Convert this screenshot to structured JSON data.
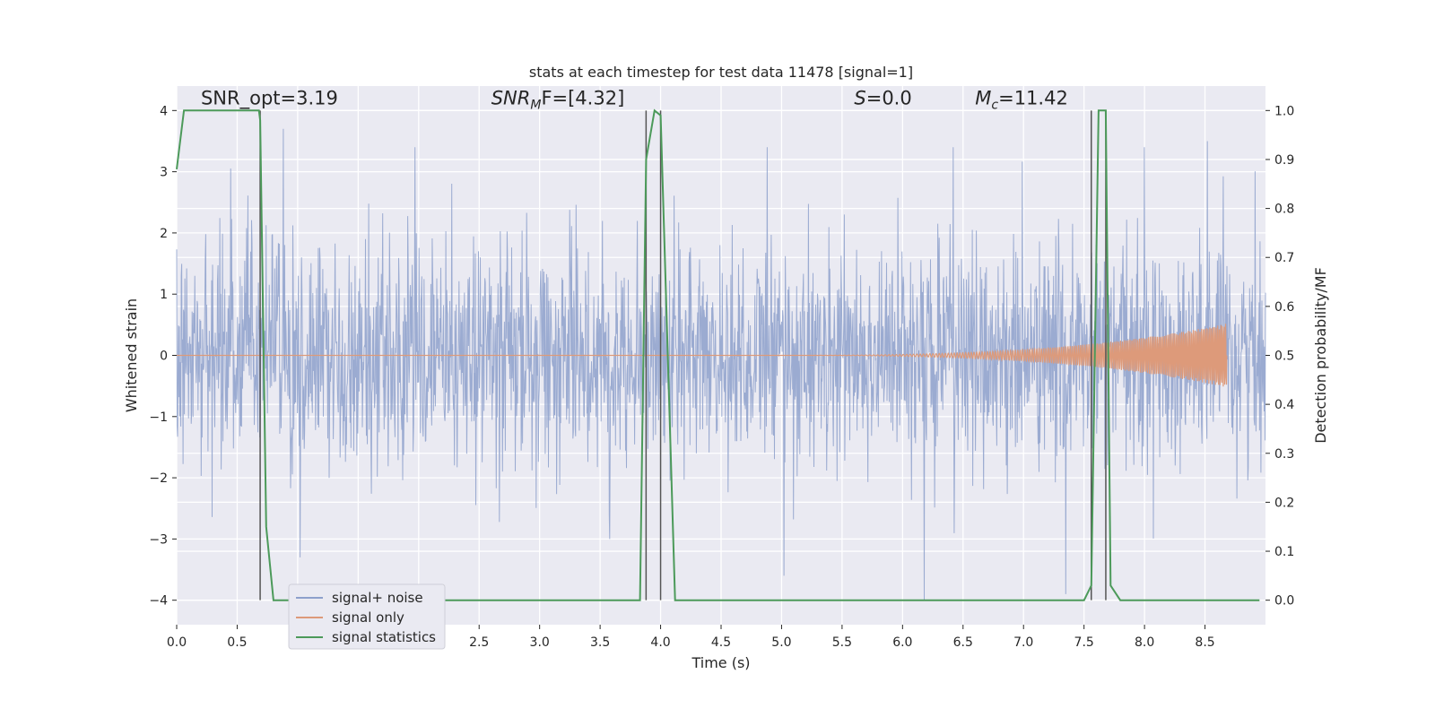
{
  "chart_data": {
    "type": "line",
    "title": "stats at each timestep for test data 11478 [signal=1]",
    "xlabel": "Time (s)",
    "ylabel_left": "Whitened strain",
    "ylabel_right": "Detection probability/MF",
    "xlim": [
      0.0,
      9.0
    ],
    "ylim_left": [
      -4.4,
      4.4
    ],
    "ylim_right": [
      -0.05,
      1.05
    ],
    "x_ticks": [
      0.0,
      0.5,
      1.0,
      1.5,
      2.0,
      2.5,
      3.0,
      3.5,
      4.0,
      4.5,
      5.0,
      5.5,
      6.0,
      6.5,
      7.0,
      7.5,
      8.0,
      8.5
    ],
    "x_tick_labels": [
      "0.0",
      "0.5",
      "1.0",
      "1.5",
      "2.0",
      "2.5",
      "3.0",
      "3.5",
      "4.0",
      "4.5",
      "5.0",
      "5.5",
      "6.0",
      "6.5",
      "7.0",
      "7.5",
      "8.0",
      "8.5"
    ],
    "y_left_ticks": [
      -4,
      -3,
      -2,
      -1,
      0,
      1,
      2,
      3,
      4
    ],
    "y_left_tick_labels": [
      "−4",
      "−3",
      "−2",
      "−1",
      "0",
      "1",
      "2",
      "3",
      "4"
    ],
    "y_right_ticks": [
      0.0,
      0.1,
      0.2,
      0.3,
      0.4,
      0.5,
      0.6,
      0.7,
      0.8,
      0.9,
      1.0
    ],
    "y_right_tick_labels": [
      "0.0",
      "0.1",
      "0.2",
      "0.3",
      "0.4",
      "0.5",
      "0.6",
      "0.7",
      "0.8",
      "0.9",
      "1.0"
    ],
    "grid": true,
    "legend_position": "lower-left",
    "annotations": [
      {
        "label": "SNR_opt=3.19",
        "x": 0.2,
        "y": 4.1,
        "style": "normal"
      },
      {
        "prefix": "SNR",
        "sub": "M",
        "suffix": "F=[4.32]",
        "x": 2.6,
        "y": 4.1,
        "style": "math"
      },
      {
        "prefix": "S",
        "sub": "",
        "suffix": "=0.0",
        "x": 5.6,
        "y": 4.1,
        "style": "math"
      },
      {
        "prefix": "M",
        "sub": "c",
        "suffix": "=11.42",
        "x": 6.6,
        "y": 4.1,
        "style": "math"
      }
    ],
    "vertical_lines_x": [
      0.69,
      3.88,
      4.0,
      7.56,
      7.68
    ],
    "vertical_lines_range": [
      -4.0,
      4.0
    ],
    "series": [
      {
        "name": "signal+ noise",
        "color": "#8da0cb",
        "axis": "left",
        "description": "noise",
        "x_range": [
          0.0,
          9.0
        ],
        "envelope_rms": 0.9,
        "y_extremes_sample": [
          {
            "x": 0.88,
            "y": 3.7
          },
          {
            "x": 1.02,
            "y": -3.3
          },
          {
            "x": 1.97,
            "y": 3.4
          },
          {
            "x": 3.58,
            "y": 3.3
          },
          {
            "x": 3.58,
            "y": -3.0
          },
          {
            "x": 4.88,
            "y": 3.4
          },
          {
            "x": 5.02,
            "y": -3.6
          },
          {
            "x": 6.18,
            "y": -4.0
          },
          {
            "x": 6.42,
            "y": 3.4
          },
          {
            "x": 7.35,
            "y": -3.9
          },
          {
            "x": 8.0,
            "y": 3.4
          },
          {
            "x": 8.52,
            "y": 3.5
          }
        ]
      },
      {
        "name": "signal only",
        "color": "#dd9a7a",
        "axis": "left",
        "description": "chirp",
        "x_range": [
          4.8,
          8.68
        ],
        "amplitude_start": 0.0,
        "amplitude_end": 0.52
      },
      {
        "name": "signal statistics",
        "color": "#4c9a5a",
        "axis": "right",
        "x": [
          0.0,
          0.06,
          0.1,
          0.5,
          0.68,
          0.69,
          0.74,
          0.8,
          3.83,
          3.88,
          3.95,
          4.0,
          4.12,
          7.5,
          7.56,
          7.62,
          7.68,
          7.72,
          7.8,
          8.95
        ],
        "y": [
          0.88,
          1.0,
          1.0,
          1.0,
          1.0,
          0.98,
          0.15,
          0.0,
          0.0,
          0.9,
          1.0,
          0.99,
          0.0,
          0.0,
          0.03,
          1.0,
          1.0,
          0.03,
          0.0,
          0.0
        ]
      }
    ]
  }
}
